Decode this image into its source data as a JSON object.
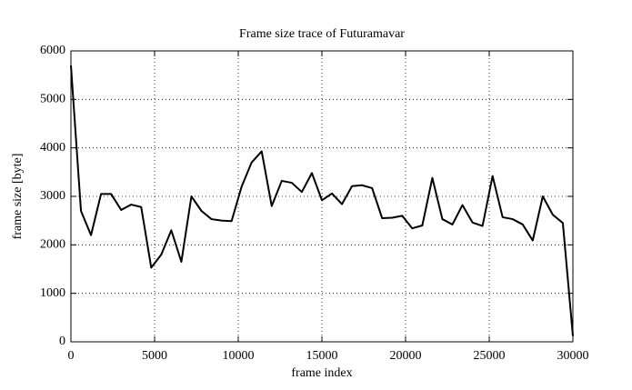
{
  "chart_data": {
    "type": "line",
    "title": "Frame size trace of Futuramavar",
    "x_label": "frame index",
    "y_label": "frame size [byte]",
    "x": [
      0,
      600,
      1200,
      1800,
      2400,
      3000,
      3600,
      4200,
      4800,
      5400,
      6000,
      6600,
      7200,
      7800,
      8400,
      9000,
      9600,
      10200,
      10800,
      11400,
      12000,
      12600,
      13200,
      13800,
      14400,
      15000,
      15600,
      16200,
      16800,
      17400,
      18000,
      18600,
      19200,
      19800,
      20400,
      21000,
      21600,
      22200,
      22800,
      23400,
      24000,
      24600,
      25200,
      25800,
      26400,
      27000,
      27600,
      28200,
      28800,
      29400,
      30000
    ],
    "series": [
      {
        "name": "frame size",
        "color": "#000000",
        "values": [
          5700,
          2700,
          2200,
          3050,
          3050,
          2720,
          2830,
          2780,
          1530,
          1800,
          2300,
          1650,
          3000,
          2700,
          2530,
          2500,
          2490,
          3200,
          3700,
          3930,
          2800,
          3320,
          3280,
          3090,
          3480,
          2920,
          3060,
          2840,
          3210,
          3230,
          3170,
          2550,
          2560,
          2600,
          2340,
          2400,
          3380,
          2530,
          2420,
          2820,
          2460,
          2390,
          3420,
          2570,
          2530,
          2420,
          2090,
          3000,
          2620,
          2450,
          120
        ]
      }
    ],
    "xlim": [
      0,
      30000
    ],
    "ylim": [
      0,
      6000
    ],
    "xticks": [
      0,
      5000,
      10000,
      15000,
      20000,
      25000,
      30000
    ],
    "yticks": [
      0,
      1000,
      2000,
      3000,
      4000,
      5000,
      6000
    ],
    "grid": true
  }
}
